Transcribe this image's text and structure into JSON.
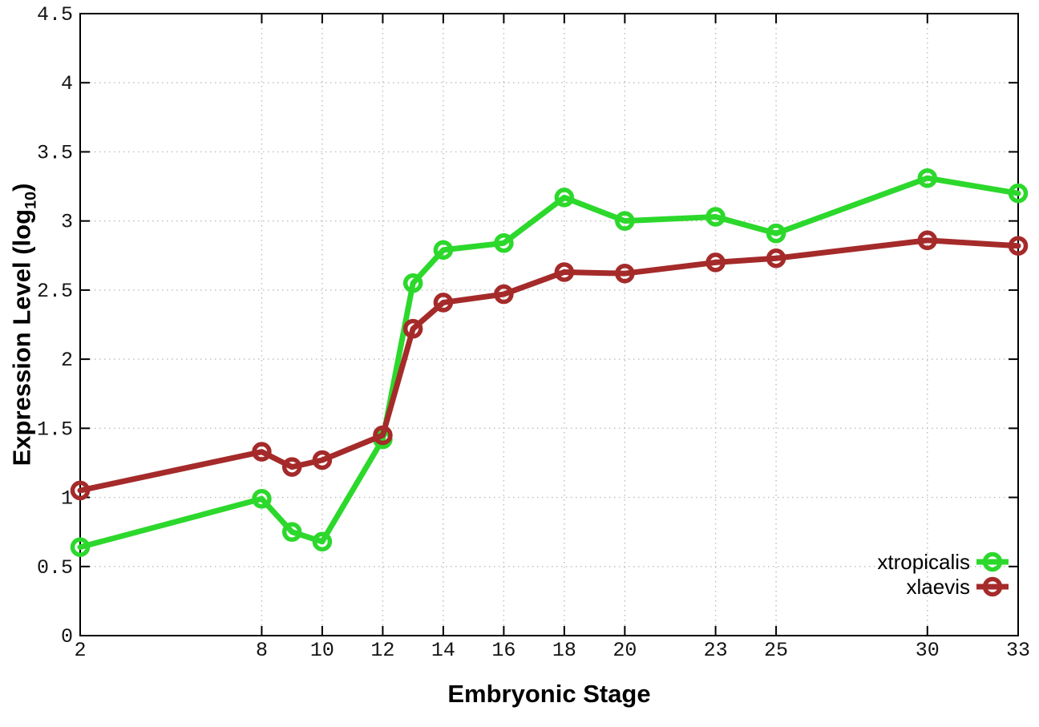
{
  "chart_data": {
    "type": "line",
    "title": "",
    "xlabel": "Embryonic Stage",
    "ylabel": "Expression Level (log10)",
    "ylabel_parts": {
      "main": "Expression Level (log",
      "sub": "10",
      "close": ")"
    },
    "x": [
      2,
      8,
      9,
      10,
      12,
      13,
      14,
      16,
      18,
      20,
      23,
      25,
      30,
      33
    ],
    "series": [
      {
        "name": "xtropicalis",
        "color": "#2cd82c",
        "values": [
          0.64,
          0.99,
          0.75,
          0.68,
          1.42,
          2.55,
          2.79,
          2.84,
          3.17,
          3.0,
          3.03,
          2.91,
          3.31,
          3.2
        ]
      },
      {
        "name": "xlaevis",
        "color": "#a52a2a",
        "values": [
          1.05,
          1.33,
          1.22,
          1.27,
          1.45,
          2.22,
          2.41,
          2.47,
          2.63,
          2.62,
          2.7,
          2.73,
          2.86,
          2.82
        ]
      }
    ],
    "x_tick_values": [
      2,
      8,
      10,
      12,
      14,
      16,
      18,
      20,
      23,
      25,
      30,
      33
    ],
    "x_tick_labels": [
      "2",
      "8",
      "10",
      "12",
      "14",
      "16",
      "18",
      "20",
      "23",
      "25",
      "30",
      "33"
    ],
    "y_tick_values": [
      0,
      0.5,
      1,
      1.5,
      2,
      2.5,
      3,
      3.5,
      4,
      4.5
    ],
    "y_tick_labels": [
      "0",
      "0.5",
      "1",
      "1.5",
      "2",
      "2.5",
      "3",
      "3.5",
      "4",
      "4.5"
    ],
    "xlim": [
      2,
      33
    ],
    "ylim": [
      0,
      4.5
    ],
    "grid": "dotted",
    "legend_position": "bottom-right",
    "legend_entries": [
      "xtropicalis",
      "xlaevis"
    ],
    "colors": {
      "axis": "#000000",
      "grid": "#bcbcbc",
      "tick_text": "#141414",
      "background": "#ffffff"
    },
    "marker": "open-circle"
  }
}
